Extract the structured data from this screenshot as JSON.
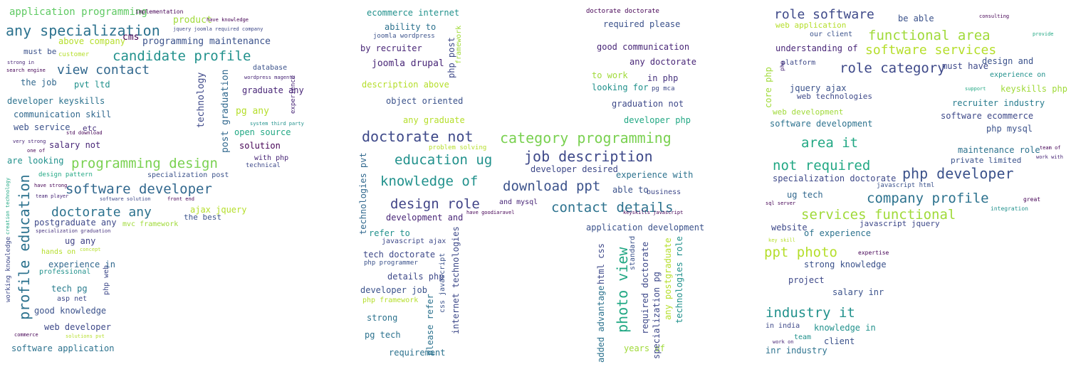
{
  "panel_left": {
    "words": [
      {
        "text": "application programming",
        "color": "#5ec962"
      },
      {
        "text": "implementation",
        "color": "#440154"
      },
      {
        "text": "any specialization",
        "color": "#2c728e"
      },
      {
        "text": "candidate profile",
        "color": "#21918c"
      },
      {
        "text": "view contact",
        "color": "#31688e"
      },
      {
        "text": "programming maintenance",
        "color": "#3b528b"
      },
      {
        "text": "above company",
        "color": "#b5de2b"
      },
      {
        "text": "cms",
        "color": "#440154"
      },
      {
        "text": "product",
        "color": "#a0da39"
      },
      {
        "text": "must be",
        "color": "#3b528b"
      },
      {
        "text": "customer",
        "color": "#b5de2b"
      },
      {
        "text": "the job",
        "color": "#31688e"
      },
      {
        "text": "pvt ltd",
        "color": "#21918c"
      },
      {
        "text": "developer keyskills",
        "color": "#2c728e"
      },
      {
        "text": "communication skill",
        "color": "#31688e"
      },
      {
        "text": "web service",
        "color": "#3b528b"
      },
      {
        "text": "salary not",
        "color": "#482677"
      },
      {
        "text": "etc",
        "color": "#46327e"
      },
      {
        "text": "are looking",
        "color": "#21918c"
      },
      {
        "text": "programming design",
        "color": "#7ad151"
      },
      {
        "text": "software developer",
        "color": "#31688e"
      },
      {
        "text": "doctorate any",
        "color": "#2c728e"
      },
      {
        "text": "postgraduate any",
        "color": "#3e4989"
      },
      {
        "text": "ug any",
        "color": "#414487"
      },
      {
        "text": "experience in",
        "color": "#31688e"
      },
      {
        "text": "tech pg",
        "color": "#287c8e"
      },
      {
        "text": "good knowledge",
        "color": "#3b528b"
      },
      {
        "text": "web developer",
        "color": "#3e4989"
      },
      {
        "text": "software application",
        "color": "#2c728e"
      },
      {
        "text": "professional",
        "color": "#21918c"
      },
      {
        "text": "hands on",
        "color": "#b5de2b"
      },
      {
        "text": "asp net",
        "color": "#3e4989"
      },
      {
        "text": "graduate any",
        "color": "#482677"
      },
      {
        "text": "pg any",
        "color": "#b5de2b"
      },
      {
        "text": "open source",
        "color": "#22a884"
      },
      {
        "text": "solution",
        "color": "#440154"
      },
      {
        "text": "with php",
        "color": "#482677"
      },
      {
        "text": "technical",
        "color": "#3e4989"
      },
      {
        "text": "specialization post",
        "color": "#3b528b"
      },
      {
        "text": "design pattern",
        "color": "#22a884"
      },
      {
        "text": "ajax jquery",
        "color": "#b5de2b"
      },
      {
        "text": "the best",
        "color": "#3b528b"
      },
      {
        "text": "mvc framework",
        "color": "#a0da39"
      },
      {
        "text": "database",
        "color": "#3b528b"
      },
      {
        "text": "have knowledge",
        "color": "#440154"
      },
      {
        "text": "jquery joomla required company",
        "color": "#3e4989"
      },
      {
        "text": "wordpress magento",
        "color": "#482677"
      },
      {
        "text": "system third party",
        "color": "#21918c"
      },
      {
        "text": "std download",
        "color": "#440154"
      },
      {
        "text": "search engine",
        "color": "#440154"
      },
      {
        "text": "strong in",
        "color": "#482677"
      },
      {
        "text": "very strong",
        "color": "#482677"
      },
      {
        "text": "one of",
        "color": "#440154"
      },
      {
        "text": "have strong",
        "color": "#440154"
      },
      {
        "text": "team player",
        "color": "#482677"
      },
      {
        "text": "specialization graduation",
        "color": "#46327e"
      },
      {
        "text": "concept",
        "color": "#b5de2b"
      },
      {
        "text": "commerce",
        "color": "#440154"
      },
      {
        "text": "solutions pvt",
        "color": "#b5de2b"
      },
      {
        "text": "front end",
        "color": "#440154"
      },
      {
        "text": "software solution",
        "color": "#3e4989"
      }
    ],
    "vertical_words": [
      {
        "text": "profile education",
        "color": "#2c728e"
      },
      {
        "text": "technology",
        "color": "#3e4989"
      },
      {
        "text": "post graduation",
        "color": "#31688e"
      },
      {
        "text": "working knowledge",
        "color": "#3e4989"
      },
      {
        "text": "php web",
        "color": "#3e4989"
      },
      {
        "text": "creation technology",
        "color": "#22a884"
      },
      {
        "text": "experience",
        "color": "#482677"
      }
    ]
  },
  "panel_middle": {
    "words": [
      {
        "text": "ecommerce internet",
        "color": "#21918c"
      },
      {
        "text": "ability to",
        "color": "#2c728e"
      },
      {
        "text": "joomla wordpress",
        "color": "#3b528b"
      },
      {
        "text": "by recruiter",
        "color": "#482677"
      },
      {
        "text": "joomla drupal",
        "color": "#482677"
      },
      {
        "text": "description above",
        "color": "#b5de2b"
      },
      {
        "text": "object oriented",
        "color": "#3b528b"
      },
      {
        "text": "any graduate",
        "color": "#b5de2b"
      },
      {
        "text": "doctorate not",
        "color": "#3e4989"
      },
      {
        "text": "category programming",
        "color": "#7ad151"
      },
      {
        "text": "education ug",
        "color": "#21918c"
      },
      {
        "text": "job description",
        "color": "#3e4989"
      },
      {
        "text": "knowledge of",
        "color": "#21918c"
      },
      {
        "text": "download ppt",
        "color": "#3b528b"
      },
      {
        "text": "design role",
        "color": "#414487"
      },
      {
        "text": "contact details",
        "color": "#2c728e"
      },
      {
        "text": "development and",
        "color": "#482677"
      },
      {
        "text": "and mysql",
        "color": "#482677"
      },
      {
        "text": "refer to",
        "color": "#21918c"
      },
      {
        "text": "javascript ajax",
        "color": "#3e4989"
      },
      {
        "text": "tech doctorate",
        "color": "#3e4989"
      },
      {
        "text": "php programmer",
        "color": "#3b528b"
      },
      {
        "text": "details php",
        "color": "#3e4989"
      },
      {
        "text": "developer job",
        "color": "#3b528b"
      },
      {
        "text": "php framework",
        "color": "#b5de2b"
      },
      {
        "text": "strong",
        "color": "#2c728e"
      },
      {
        "text": "pg tech",
        "color": "#2c728e"
      },
      {
        "text": "requirement",
        "color": "#2c728e"
      },
      {
        "text": "doctorate doctorate",
        "color": "#440154"
      },
      {
        "text": "required please",
        "color": "#3b528b"
      },
      {
        "text": "good communication",
        "color": "#482677"
      },
      {
        "text": "any doctorate",
        "color": "#482677"
      },
      {
        "text": "to work",
        "color": "#a0da39"
      },
      {
        "text": "in php",
        "color": "#46327e"
      },
      {
        "text": "looking for",
        "color": "#21918c"
      },
      {
        "text": "pg mca",
        "color": "#3e4989"
      },
      {
        "text": "graduation not",
        "color": "#3e4989"
      },
      {
        "text": "developer php",
        "color": "#22a884"
      },
      {
        "text": "developer desired",
        "color": "#3e4989"
      },
      {
        "text": "experience with",
        "color": "#2c728e"
      },
      {
        "text": "able to",
        "color": "#3b528b"
      },
      {
        "text": "business",
        "color": "#3e4989"
      },
      {
        "text": "application development",
        "color": "#3b528b"
      },
      {
        "text": "years of",
        "color": "#a0da39"
      },
      {
        "text": "problem solving",
        "color": "#b5de2b"
      },
      {
        "text": "have goodiaravel",
        "color": "#440154"
      },
      {
        "text": "keyskills javascript",
        "color": "#440154"
      }
    ],
    "vertical_words": [
      {
        "text": "technologies pvt",
        "color": "#31688e"
      },
      {
        "text": "internet technologies",
        "color": "#3e4989"
      },
      {
        "text": "please refer",
        "color": "#2c728e"
      },
      {
        "text": "css javascript",
        "color": "#3b528b"
      },
      {
        "text": "php post",
        "color": "#3e4989"
      },
      {
        "text": "framework",
        "color": "#a0da39"
      },
      {
        "text": "photo view",
        "color": "#22a884"
      },
      {
        "text": "added advantage",
        "color": "#2c728e"
      },
      {
        "text": "html css",
        "color": "#3e4989"
      },
      {
        "text": "required doctorate",
        "color": "#3e4989"
      },
      {
        "text": "specialization pg",
        "color": "#3e4989"
      },
      {
        "text": "any postgraduate",
        "color": "#b5de2b"
      },
      {
        "text": "technologies role",
        "color": "#21918c"
      },
      {
        "text": "standard",
        "color": "#3b528b"
      }
    ]
  },
  "panel_right": {
    "words": [
      {
        "text": "role software",
        "color": "#3e4989"
      },
      {
        "text": "web application",
        "color": "#b5de2b"
      },
      {
        "text": "be able",
        "color": "#3b528b"
      },
      {
        "text": "functional area",
        "color": "#a0da39"
      },
      {
        "text": "our client",
        "color": "#3b528b"
      },
      {
        "text": "software services",
        "color": "#b5de2b"
      },
      {
        "text": "understanding of",
        "color": "#482677"
      },
      {
        "text": "role category",
        "color": "#3e4989"
      },
      {
        "text": "must have",
        "color": "#3e4989"
      },
      {
        "text": "design and",
        "color": "#3b528b"
      },
      {
        "text": "platform",
        "color": "#3e4989"
      },
      {
        "text": "jquery ajax",
        "color": "#3b528b"
      },
      {
        "text": "web technologies",
        "color": "#3e4989"
      },
      {
        "text": "keyskills php",
        "color": "#a0da39"
      },
      {
        "text": "recruiter industry",
        "color": "#287c8e"
      },
      {
        "text": "software ecommerce",
        "color": "#3e4989"
      },
      {
        "text": "web development",
        "color": "#a0da39"
      },
      {
        "text": "software development",
        "color": "#2c728e"
      },
      {
        "text": "php mysql",
        "color": "#3b528b"
      },
      {
        "text": "area it",
        "color": "#22a884"
      },
      {
        "text": "maintenance role",
        "color": "#2c728e"
      },
      {
        "text": "private limited",
        "color": "#3b528b"
      },
      {
        "text": "not required",
        "color": "#22a884"
      },
      {
        "text": "php developer",
        "color": "#3b528b"
      },
      {
        "text": "specialization doctorate",
        "color": "#3e4989"
      },
      {
        "text": "ug tech",
        "color": "#31688e"
      },
      {
        "text": "javascript html",
        "color": "#3b528b"
      },
      {
        "text": "company profile",
        "color": "#2c728e"
      },
      {
        "text": "services functional",
        "color": "#a0da39"
      },
      {
        "text": "website",
        "color": "#3e4989"
      },
      {
        "text": "javascript jquery",
        "color": "#3e4989"
      },
      {
        "text": "of experience",
        "color": "#2c728e"
      },
      {
        "text": "ppt photo",
        "color": "#b5de2b"
      },
      {
        "text": "strong knowledge",
        "color": "#3b528b"
      },
      {
        "text": "project",
        "color": "#3e4989"
      },
      {
        "text": "salary inr",
        "color": "#3b528b"
      },
      {
        "text": "industry it",
        "color": "#21918c"
      },
      {
        "text": "in india",
        "color": "#3e4989"
      },
      {
        "text": "knowledge in",
        "color": "#21918c"
      },
      {
        "text": "team",
        "color": "#21918c"
      },
      {
        "text": "client",
        "color": "#3b528b"
      },
      {
        "text": "inr industry",
        "color": "#2c728e"
      },
      {
        "text": "expertise",
        "color": "#440154"
      },
      {
        "text": "integration",
        "color": "#21918c"
      },
      {
        "text": "great",
        "color": "#440154"
      },
      {
        "text": "experience on",
        "color": "#21918c"
      },
      {
        "text": "consulting",
        "color": "#440154"
      },
      {
        "text": "provide",
        "color": "#22a884"
      },
      {
        "text": "support",
        "color": "#22a884"
      },
      {
        "text": "team of",
        "color": "#440154"
      },
      {
        "text": "work with",
        "color": "#482677"
      },
      {
        "text": "sql server",
        "color": "#440154"
      },
      {
        "text": "key skill",
        "color": "#b5de2b"
      },
      {
        "text": "work on",
        "color": "#482677"
      }
    ],
    "vertical_words": [
      {
        "text": "core php",
        "color": "#a0da39"
      },
      {
        "text": "php",
        "color": "#482677"
      }
    ]
  }
}
